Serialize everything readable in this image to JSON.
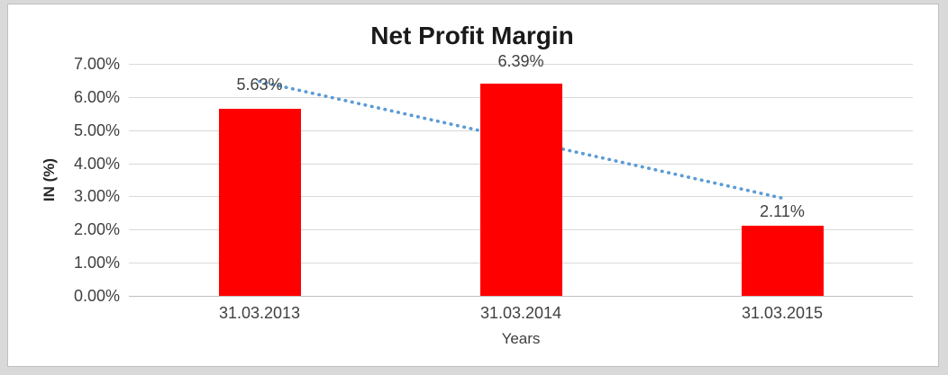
{
  "chart_data": {
    "type": "bar",
    "title": "Net Profit Margin",
    "categories": [
      "31.03.2013",
      "31.03.2014",
      "31.03.2015"
    ],
    "values": [
      5.63,
      6.39,
      2.11
    ],
    "data_labels": [
      "5.63%",
      "6.39%",
      "2.11%"
    ],
    "xlabel": "Years",
    "ylabel": "IN (%)",
    "ylim": [
      0,
      7
    ],
    "ytick_step": 1,
    "ytick_labels": [
      "0.00%",
      "1.00%",
      "2.00%",
      "3.00%",
      "4.00%",
      "5.00%",
      "6.00%",
      "7.00%"
    ],
    "grid": true,
    "legend": "none",
    "bar_color": "#FF0000",
    "trendline": {
      "type": "linear",
      "style": "dotted",
      "color": "#5B9BD5"
    }
  },
  "colors": {
    "page_background": "#D9D9D9",
    "panel_background": "#FFFFFF",
    "panel_border": "#C0C0C0",
    "gridline": "#D9D9D9",
    "axis_line": "#BFBFBF",
    "text": "#404040",
    "title_text": "#1A1A1A"
  }
}
